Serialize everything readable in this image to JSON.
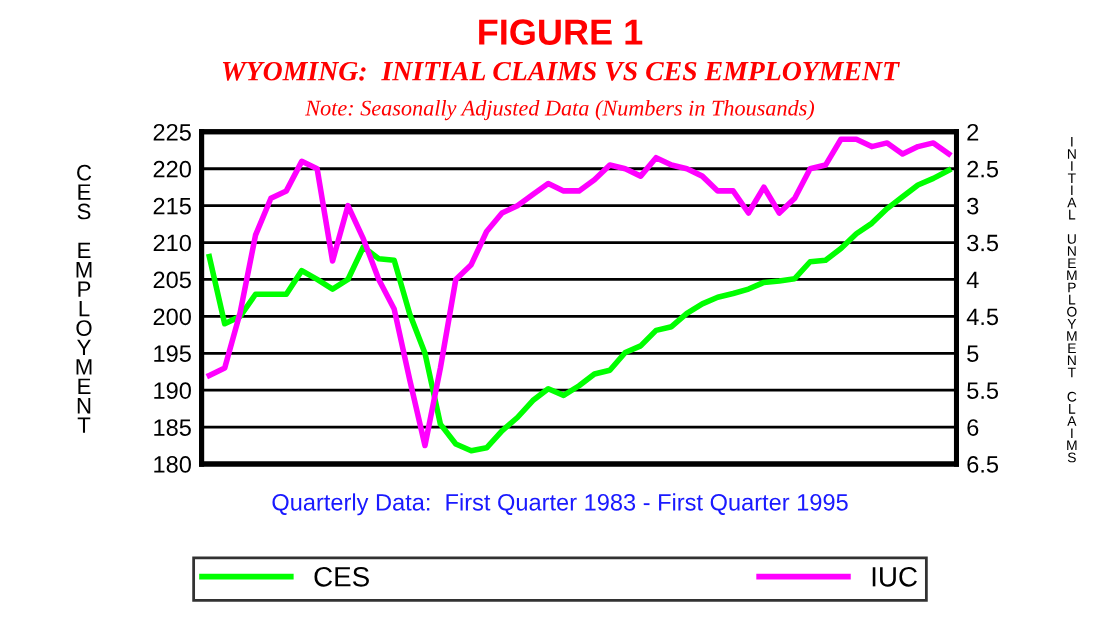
{
  "chart_data": {
    "type": "line",
    "title": "FIGURE 1",
    "subtitle": "WYOMING:  INITIAL CLAIMS VS CES EMPLOYMENT",
    "annotations": [
      "Note: Seasonally Adjusted Data (Numbers in Thousands)",
      "Quarterly Data:  First Quarter 1983 - First Quarter 1995"
    ],
    "ylabel": "CES EMPLOYMENT",
    "y2label": "INITIAL UNEMPLOYMENT CLAIMS",
    "categories": [
      null,
      null,
      null,
      null,
      null,
      null,
      null,
      null,
      null,
      null,
      null,
      null,
      null,
      null,
      null,
      null,
      null,
      null,
      null,
      null,
      null,
      null,
      null,
      null,
      null,
      null,
      null,
      null,
      null,
      null,
      null,
      null,
      null,
      null,
      null,
      null,
      null,
      null,
      null,
      null,
      null,
      null,
      null,
      null,
      null,
      null,
      null,
      null,
      null
    ],
    "series": [
      {
        "name": "CES",
        "color": "#00ff00",
        "values": [
          208.1,
          199,
          200,
          203,
          203,
          203,
          206.2,
          205,
          203.7,
          205,
          209.4,
          207.8,
          207.6,
          200.4,
          195,
          185.4,
          182.7,
          181.8,
          182.2,
          184.5,
          186.3,
          188.6,
          190.2,
          189.3,
          190.6,
          192.2,
          192.7,
          195.1,
          196,
          198.1,
          198.6,
          200.4,
          201.7,
          202.6,
          203.1,
          203.7,
          204.6,
          204.8,
          205.1,
          207.4,
          207.6,
          209.2,
          211.2,
          212.6,
          214.6,
          216.2,
          217.8,
          218.7,
          219.8
        ]
      },
      {
        "name": "IUC",
        "color": "#ff00ff",
        "axis": "y2",
        "values": [
          5.3,
          5.2,
          4.45,
          3.4,
          2.9,
          2.8,
          2.4,
          2.5,
          3.75,
          3.0,
          3.45,
          4.0,
          4.4,
          5.35,
          6.25,
          5.2,
          4.0,
          3.8,
          3.35,
          3.1,
          3.0,
          2.85,
          2.7,
          2.8,
          2.8,
          2.65,
          2.45,
          2.5,
          2.6,
          2.35,
          2.45,
          2.5,
          2.6,
          2.8,
          2.8,
          3.1,
          2.75,
          3.1,
          2.9,
          2.5,
          2.45,
          2.1,
          2.1,
          2.2,
          2.15,
          2.3,
          2.2,
          2.15,
          2.3
        ]
      }
    ],
    "ylim": [
      180,
      225
    ],
    "yticks": [
      180,
      185,
      190,
      195,
      200,
      205,
      210,
      215,
      220,
      225
    ],
    "y2lim": [
      6.5,
      2
    ],
    "y2ticks": [
      2,
      2.5,
      3,
      3.5,
      4,
      4.5,
      5,
      5.5,
      6,
      6.5
    ],
    "grid": "y",
    "legend": "bottom",
    "tick_labels": "y"
  }
}
